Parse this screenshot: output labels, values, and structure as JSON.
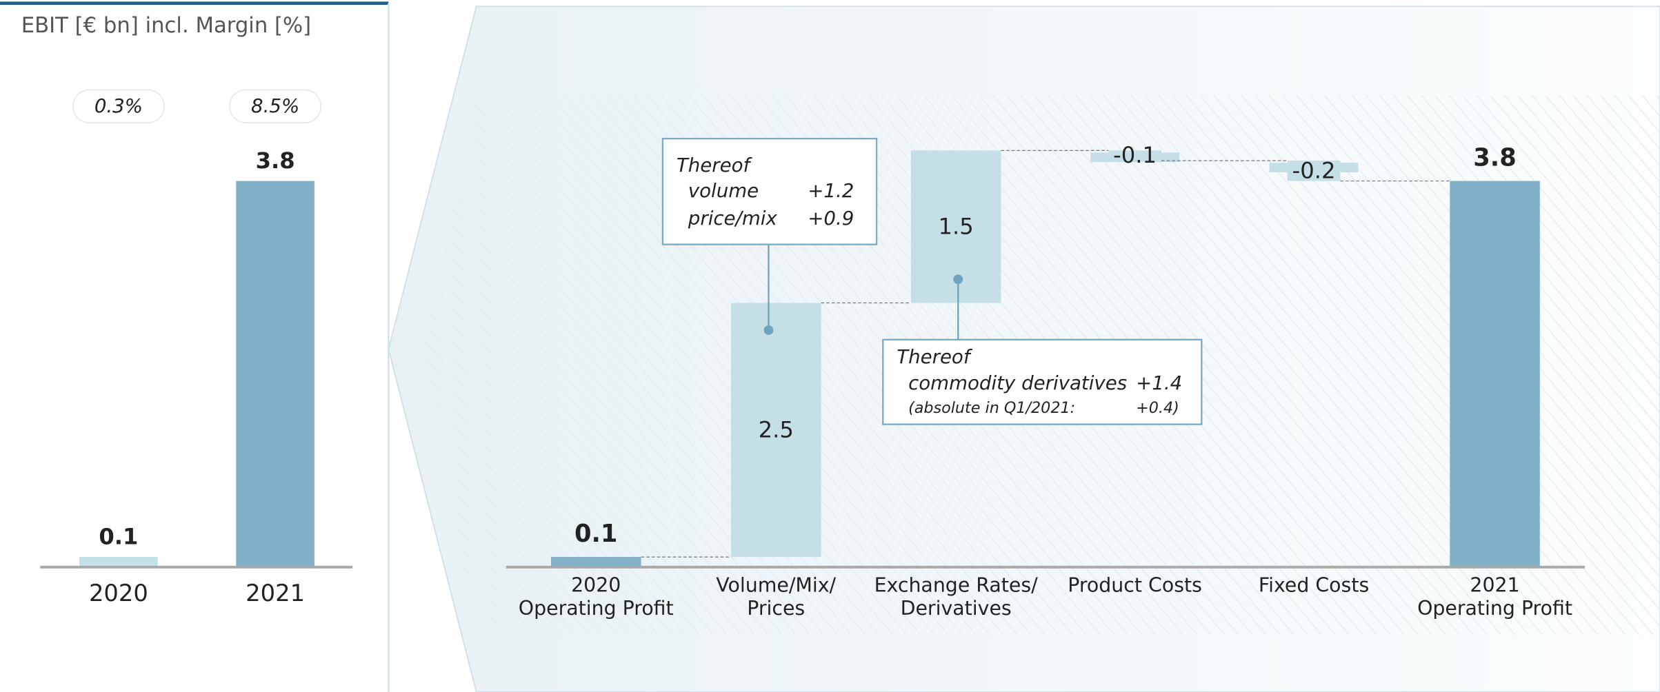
{
  "chart_data": [
    {
      "type": "bar",
      "title": "EBIT [€ bn] incl. Margin [%]",
      "categories": [
        "2020",
        "2021"
      ],
      "values": [
        0.1,
        3.8
      ],
      "colors": [
        "#c5dfe6",
        "#80afc6"
      ],
      "margin": {
        "values": [
          0.3,
          8.5
        ],
        "value_labels": [
          "0.3%",
          "8.5%"
        ]
      },
      "ylim": [
        0,
        4.3
      ]
    },
    {
      "type": "waterfall",
      "categories": [
        [
          "2020",
          "Operating Profit"
        ],
        [
          "Volume/Mix/",
          "Prices"
        ],
        [
          "Exchange Rates/",
          "Derivatives"
        ],
        [
          "Product Costs"
        ],
        [
          "Fixed Costs"
        ],
        [
          "2021",
          "Operating Profit"
        ]
      ],
      "values": [
        0.1,
        2.5,
        1.5,
        -0.1,
        -0.2,
        3.8
      ],
      "measure": [
        "absolute",
        "relative",
        "relative",
        "relative",
        "relative",
        "total"
      ],
      "color_total": "#80afc6",
      "color_delta": "#c5dfe6",
      "ylim": [
        0,
        4.3
      ],
      "annotations": [
        {
          "title": "Thereof",
          "rows": [
            [
              "volume",
              "+1.2"
            ],
            [
              "price/mix",
              "+0.9"
            ]
          ]
        },
        {
          "title": "Thereof",
          "rows": [
            [
              "commodity derivatives",
              "+1.4"
            ],
            [
              "(absolute in Q1/2021:",
              "+0.4)"
            ]
          ]
        }
      ]
    }
  ]
}
